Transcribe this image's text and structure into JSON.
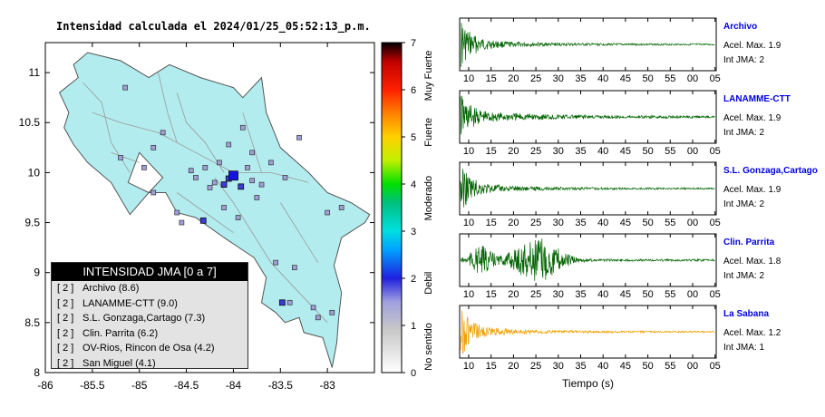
{
  "map": {
    "title": "Intensidad calculada el 2024/01/25_05:52:13_p.m.",
    "x_ticks": [
      "-86",
      "-85.5",
      "-85",
      "-84.5",
      "-84",
      "-83.5",
      "-83"
    ],
    "y_ticks": [
      "11",
      "10.5",
      "10",
      "9.5",
      "9",
      "8.5",
      "8"
    ]
  },
  "legend": {
    "header": "INTENSIDAD JMA [0 a 7]",
    "items": [
      {
        "level": "[ 2 ]",
        "name": "Archivo (8.6)"
      },
      {
        "level": "[ 2 ]",
        "name": "LANAMME-CTT (9.0)"
      },
      {
        "level": "[ 2 ]",
        "name": "S.L. Gonzaga,Cartago (7.3)"
      },
      {
        "level": "[ 2 ]",
        "name": "Clin. Parrita (6.2)"
      },
      {
        "level": "[ 2 ]",
        "name": "OV-Rios, Rincon de Osa (4.2)"
      },
      {
        "level": "[ 2 ]",
        "name": "San Miguel (4.1)"
      }
    ]
  },
  "colorbar": {
    "ticks": [
      "7",
      "6",
      "5",
      "4",
      "3",
      "2",
      "1",
      "0"
    ],
    "labels": [
      "Muy Fuerte",
      "Fuerte",
      "Moderado",
      "Debil",
      "No sentido"
    ]
  },
  "stations": [
    {
      "name": "Archivo",
      "acel": "Acel. Max. 1.9",
      "int": "Int JMA: 2",
      "color": "#006400"
    },
    {
      "name": "LANAMME-CTT",
      "acel": "Acel. Max. 1.9",
      "int": "Int JMA: 2",
      "color": "#006400"
    },
    {
      "name": "S.L. Gonzaga,Cartago",
      "acel": "Acel. Max. 1.9",
      "int": "Int JMA: 2",
      "color": "#006400"
    },
    {
      "name": "Clin. Parrita",
      "acel": "Acel. Max. 1.8",
      "int": "Int JMA: 2",
      "color": "#006400"
    },
    {
      "name": "La Sabana",
      "acel": "Acel. Max. 1.2",
      "int": "Int JMA: 1",
      "color": "#f0a000"
    }
  ],
  "time_ticks": [
    "10",
    "15",
    "20",
    "25",
    "30",
    "35",
    "40",
    "45",
    "50",
    "55",
    "00",
    "05"
  ],
  "time_axis_label": "Tiempo (s)",
  "chart_data": {
    "type": "scatter",
    "title": "Intensidad calculada el 2024/01/25_05:52:13_p.m.",
    "xlabel": "",
    "ylabel": "",
    "xlim": [
      -86,
      -82.5
    ],
    "ylim": [
      8,
      11.3
    ],
    "colorscale_range": [
      0,
      7
    ],
    "series": [
      {
        "name": "Archivo",
        "x": [
          -83.98
        ],
        "y": [
          9.96
        ],
        "intensity": 2
      },
      {
        "name": "LANAMME-CTT",
        "x": [
          -84.05
        ],
        "y": [
          9.94
        ],
        "intensity": 2
      },
      {
        "name": "S.L. Gonzaga,Cartago",
        "x": [
          -83.92
        ],
        "y": [
          9.86
        ],
        "intensity": 2
      },
      {
        "name": "Clin. Parrita",
        "x": [
          -84.32
        ],
        "y": [
          9.52
        ],
        "intensity": 2
      },
      {
        "name": "OV-Rios, Rincon de Osa",
        "x": [
          -83.48
        ],
        "y": [
          8.7
        ],
        "intensity": 2
      },
      {
        "name": "San Miguel",
        "x": [
          -84.1
        ],
        "y": [
          9.88
        ],
        "intensity": 2
      }
    ]
  }
}
